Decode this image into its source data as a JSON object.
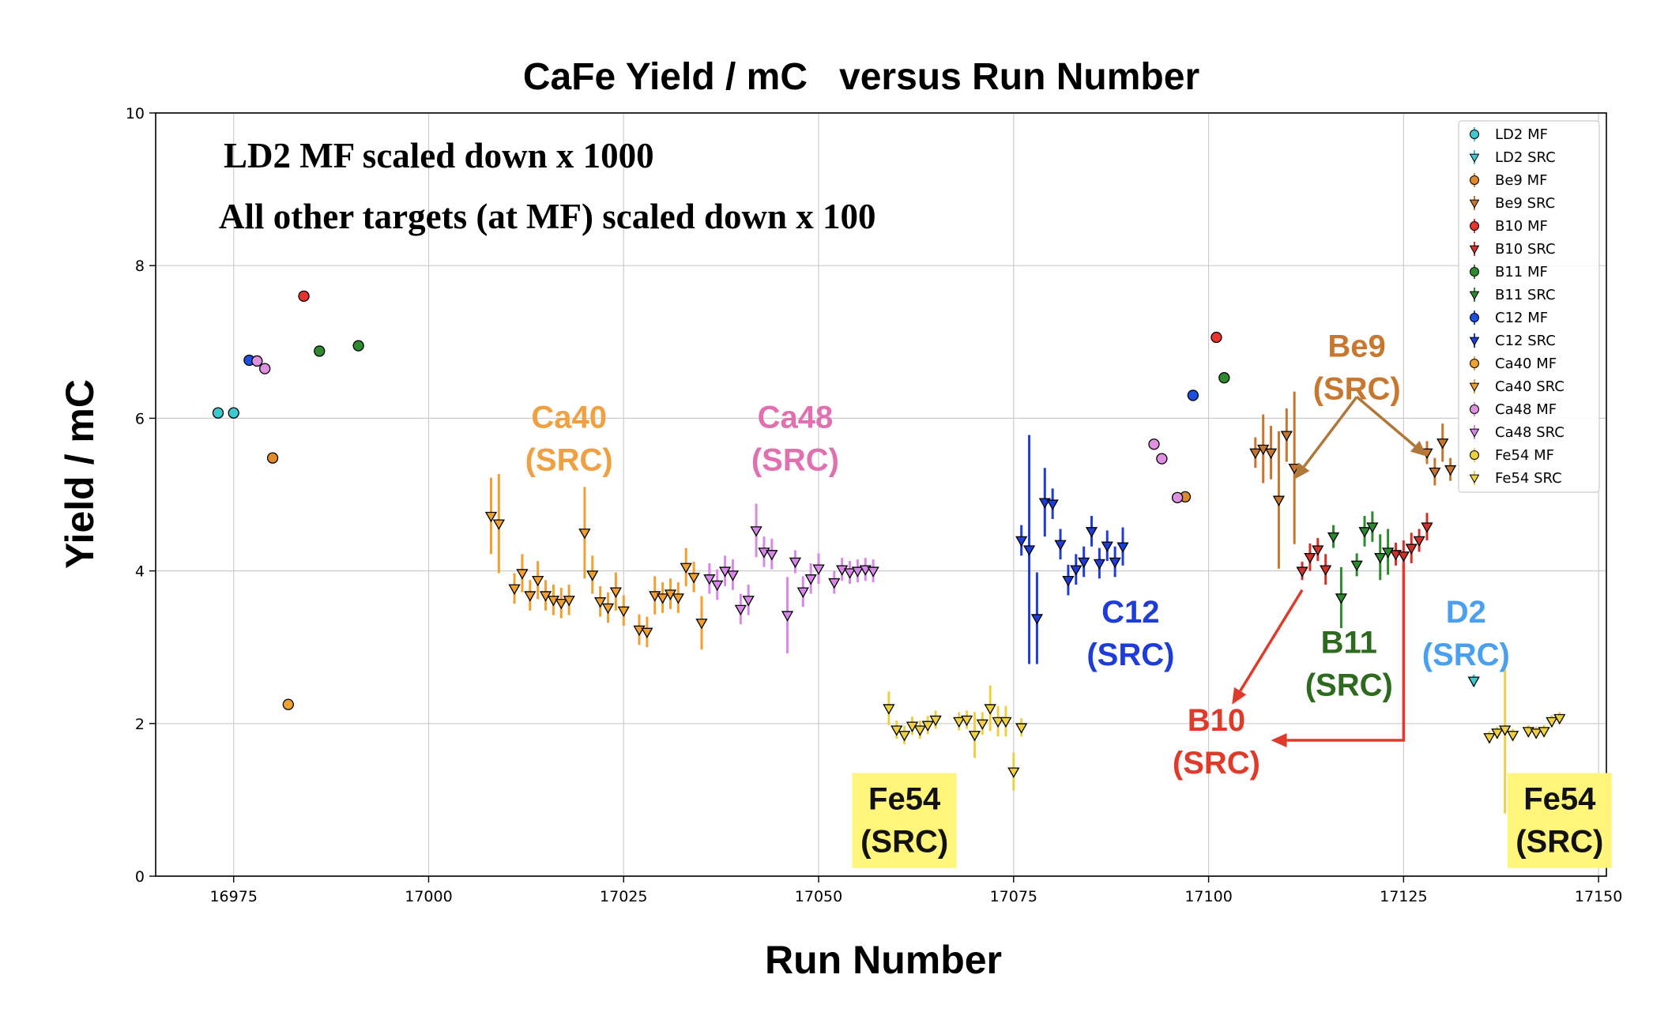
{
  "chart_data": {
    "type": "scatter",
    "title": "CaFe Yield / mC   versus Run Number",
    "xlabel": "Run Number",
    "ylabel": "Yield / mC",
    "xlim": [
      16965,
      17151
    ],
    "ylim": [
      0,
      10
    ],
    "xticks": [
      16975,
      17000,
      17025,
      17050,
      17075,
      17100,
      17125,
      17150
    ],
    "yticks": [
      0,
      2,
      4,
      6,
      8,
      10
    ],
    "grid": true,
    "legend_position": "top-right",
    "notes": [
      "LD2 MF scaled down x 1000",
      "All other targets (at MF) scaled down x 100"
    ],
    "series": [
      {
        "name": "LD2 MF",
        "marker": "circle",
        "color": "#40c8d0",
        "points": [
          [
            16973,
            6.07,
            0
          ],
          [
            16975,
            6.07,
            0
          ]
        ]
      },
      {
        "name": "LD2 SRC",
        "marker": "triangle-down",
        "color": "#40c8d0",
        "points": [
          [
            17134,
            2.56,
            0.08
          ]
        ]
      },
      {
        "name": "Be9 MF",
        "marker": "circle",
        "color": "#e08a2a",
        "points": [
          [
            16980,
            5.48,
            0
          ],
          [
            17097,
            4.97,
            0
          ]
        ]
      },
      {
        "name": "Be9 SRC",
        "marker": "triangle-down",
        "color": "#c8762e",
        "points": [
          [
            17106,
            5.55,
            0.2
          ],
          [
            17107,
            5.6,
            0.45
          ],
          [
            17108,
            5.55,
            0.35
          ],
          [
            17109,
            4.93,
            0.9
          ],
          [
            17110,
            5.78,
            0.35
          ],
          [
            17111,
            5.35,
            1.0
          ],
          [
            17128,
            5.55,
            0.15
          ],
          [
            17129,
            5.3,
            0.18
          ],
          [
            17130,
            5.68,
            0.25
          ],
          [
            17131,
            5.33,
            0.15
          ]
        ]
      },
      {
        "name": "B10 MF",
        "marker": "circle",
        "color": "#e8342c",
        "points": [
          [
            16984,
            7.6,
            0
          ],
          [
            17101,
            7.06,
            0
          ]
        ]
      },
      {
        "name": "B10 SRC",
        "marker": "triangle-down",
        "color": "#d4302a",
        "points": [
          [
            17112,
            4.0,
            0.12
          ],
          [
            17113,
            4.18,
            0.18
          ],
          [
            17114,
            4.28,
            0.15
          ],
          [
            17115,
            4.02,
            0.2
          ],
          [
            17124,
            4.22,
            0.15
          ],
          [
            17125,
            4.2,
            0.2
          ],
          [
            17126,
            4.3,
            0.2
          ],
          [
            17127,
            4.4,
            0.15
          ],
          [
            17128,
            4.58,
            0.18
          ]
        ]
      },
      {
        "name": "B11 MF",
        "marker": "circle",
        "color": "#2e8a2e",
        "points": [
          [
            16986,
            6.88,
            0
          ],
          [
            16991,
            6.95,
            0
          ],
          [
            17102,
            6.53,
            0
          ]
        ]
      },
      {
        "name": "B11 SRC",
        "marker": "triangle-down",
        "color": "#2e8a2e",
        "points": [
          [
            17116,
            4.45,
            0.15
          ],
          [
            17117,
            3.65,
            0.4
          ],
          [
            17119,
            4.08,
            0.15
          ],
          [
            17120,
            4.52,
            0.2
          ],
          [
            17121,
            4.58,
            0.2
          ],
          [
            17122,
            4.18,
            0.3
          ],
          [
            17123,
            4.25,
            0.3
          ]
        ]
      },
      {
        "name": "C12 MF",
        "marker": "circle",
        "color": "#1e50e0",
        "points": [
          [
            16977,
            6.76,
            0
          ],
          [
            17098,
            6.3,
            0
          ]
        ]
      },
      {
        "name": "C12 SRC",
        "marker": "triangle-down",
        "color": "#1e3cd8",
        "points": [
          [
            17076,
            4.4,
            0.2
          ],
          [
            17077,
            4.28,
            1.5
          ],
          [
            17078,
            3.38,
            0.6
          ],
          [
            17079,
            4.9,
            0.45
          ],
          [
            17080,
            4.88,
            0.2
          ],
          [
            17081,
            4.35,
            0.2
          ],
          [
            17082,
            3.88,
            0.2
          ],
          [
            17083,
            4.02,
            0.2
          ],
          [
            17084,
            4.12,
            0.2
          ],
          [
            17085,
            4.52,
            0.2
          ],
          [
            17086,
            4.1,
            0.2
          ],
          [
            17087,
            4.33,
            0.2
          ],
          [
            17088,
            4.12,
            0.2
          ],
          [
            17089,
            4.32,
            0.25
          ]
        ]
      },
      {
        "name": "Ca40 MF",
        "marker": "circle",
        "color": "#f0a030",
        "points": [
          [
            16982,
            2.25,
            0
          ]
        ]
      },
      {
        "name": "Ca40 SRC",
        "marker": "triangle-down",
        "color": "#f0a030",
        "points": [
          [
            17008,
            4.72,
            0.5
          ],
          [
            17009,
            4.62,
            0.65
          ],
          [
            17011,
            3.77,
            0.2
          ],
          [
            17012,
            3.97,
            0.25
          ],
          [
            17013,
            3.68,
            0.2
          ],
          [
            17014,
            3.88,
            0.25
          ],
          [
            17015,
            3.68,
            0.2
          ],
          [
            17016,
            3.62,
            0.2
          ],
          [
            17017,
            3.58,
            0.2
          ],
          [
            17018,
            3.62,
            0.2
          ],
          [
            17020,
            4.5,
            0.6
          ],
          [
            17021,
            3.95,
            0.25
          ],
          [
            17022,
            3.6,
            0.2
          ],
          [
            17023,
            3.52,
            0.2
          ],
          [
            17024,
            3.73,
            0.25
          ],
          [
            17025,
            3.48,
            0.2
          ],
          [
            17027,
            3.23,
            0.2
          ],
          [
            17028,
            3.2,
            0.2
          ],
          [
            17029,
            3.68,
            0.25
          ],
          [
            17030,
            3.65,
            0.2
          ],
          [
            17031,
            3.7,
            0.2
          ],
          [
            17032,
            3.65,
            0.2
          ],
          [
            17033,
            4.05,
            0.25
          ],
          [
            17034,
            3.92,
            0.2
          ],
          [
            17035,
            3.32,
            0.35
          ]
        ]
      },
      {
        "name": "Ca48 MF",
        "marker": "circle",
        "color": "#e090e0",
        "points": [
          [
            16978,
            6.75,
            0
          ],
          [
            16979,
            6.65,
            0
          ],
          [
            17093,
            5.66,
            0
          ],
          [
            17094,
            5.47,
            0
          ],
          [
            17096,
            4.96,
            0
          ]
        ]
      },
      {
        "name": "Ca48 SRC",
        "marker": "triangle-down",
        "color": "#d888e8",
        "points": [
          [
            17036,
            3.9,
            0.2
          ],
          [
            17037,
            3.82,
            0.2
          ],
          [
            17038,
            4.0,
            0.2
          ],
          [
            17039,
            3.95,
            0.2
          ],
          [
            17040,
            3.5,
            0.2
          ],
          [
            17041,
            3.62,
            0.2
          ],
          [
            17042,
            4.53,
            0.35
          ],
          [
            17043,
            4.25,
            0.2
          ],
          [
            17044,
            4.22,
            0.2
          ],
          [
            17046,
            3.42,
            0.5
          ],
          [
            17047,
            4.12,
            0.15
          ],
          [
            17048,
            3.73,
            0.2
          ],
          [
            17049,
            3.9,
            0.2
          ],
          [
            17050,
            4.03,
            0.2
          ],
          [
            17052,
            3.85,
            0.15
          ],
          [
            17053,
            4.02,
            0.15
          ],
          [
            17054,
            3.98,
            0.15
          ],
          [
            17055,
            4.0,
            0.15
          ],
          [
            17056,
            4.02,
            0.15
          ],
          [
            17057,
            4.0,
            0.15
          ]
        ]
      },
      {
        "name": "Fe54 MF",
        "marker": "circle",
        "color": "#f0d040",
        "points": []
      },
      {
        "name": "Fe54 SRC",
        "marker": "triangle-down",
        "color": "#f0d040",
        "points": [
          [
            17059,
            2.2,
            0.22
          ],
          [
            17060,
            1.92,
            0.12
          ],
          [
            17061,
            1.85,
            0.12
          ],
          [
            17062,
            1.97,
            0.12
          ],
          [
            17063,
            1.92,
            0.12
          ],
          [
            17064,
            1.98,
            0.12
          ],
          [
            17065,
            2.05,
            0.12
          ],
          [
            17068,
            2.03,
            0.12
          ],
          [
            17069,
            2.05,
            0.12
          ],
          [
            17070,
            1.85,
            0.3
          ],
          [
            17071,
            2.0,
            0.15
          ],
          [
            17072,
            2.2,
            0.3
          ],
          [
            17073,
            2.03,
            0.2
          ],
          [
            17074,
            2.03,
            0.2
          ],
          [
            17075,
            1.37,
            0.25
          ],
          [
            17076,
            1.95,
            0.12
          ],
          [
            17136,
            1.82,
            0.08
          ],
          [
            17137,
            1.88,
            0.08
          ],
          [
            17138,
            1.92,
            1.1
          ],
          [
            17139,
            1.85,
            0.08
          ],
          [
            17141,
            1.9,
            0.08
          ],
          [
            17142,
            1.88,
            0.08
          ],
          [
            17143,
            1.9,
            0.08
          ],
          [
            17144,
            2.03,
            0.08
          ],
          [
            17145,
            2.07,
            0.08
          ]
        ]
      }
    ],
    "annotations": [
      {
        "line1": "Ca40",
        "line2": "(SRC)",
        "color": "#f0a040",
        "pos": [
          17018,
          5.75
        ]
      },
      {
        "line1": "Ca48",
        "line2": "(SRC)",
        "color": "#e070b0",
        "pos": [
          17047,
          5.75
        ]
      },
      {
        "line1": "C12",
        "line2": "(SRC)",
        "color": "#1e3cd8",
        "pos": [
          17090,
          3.2
        ]
      },
      {
        "line1": "B11",
        "line2": "(SRC)",
        "color": "#2e6a1e",
        "pos": [
          17118,
          2.8
        ]
      },
      {
        "line1": "D2",
        "line2": "(SRC)",
        "color": "#4aa0f0",
        "pos": [
          17133,
          3.2
        ]
      },
      {
        "line1": "B10",
        "line2": "(SRC)",
        "color": "#e03a2a",
        "pos": [
          17101,
          1.78
        ]
      },
      {
        "line1": "Be9",
        "line2": "(SRC)",
        "color": "#c8782e",
        "pos": [
          17119,
          6.68
        ]
      },
      {
        "line1": "Fe54",
        "line2": "(SRC)",
        "color": "#111111",
        "pos": [
          17061,
          0.75
        ],
        "boxed": true,
        "box_color": "#fff57a"
      },
      {
        "line1": "Fe54",
        "line2": "(SRC)",
        "color": "#111111",
        "pos": [
          17145,
          0.75
        ],
        "boxed": true,
        "box_color": "#fff57a"
      }
    ],
    "arrows": [
      {
        "color": "#b07838",
        "from": [
          17119,
          6.28
        ],
        "to": [
          17111,
          5.2
        ]
      },
      {
        "color": "#b07838",
        "from": [
          17119,
          6.28
        ],
        "to": [
          17128,
          5.5
        ]
      },
      {
        "color": "#e03a2a",
        "from": [
          17112,
          3.75
        ],
        "to": [
          17103,
          2.25
        ]
      },
      {
        "color": "#e03a2a",
        "path": [
          [
            17125,
            4.1
          ],
          [
            17125,
            1.78
          ],
          [
            17108,
            1.78
          ]
        ]
      }
    ]
  }
}
